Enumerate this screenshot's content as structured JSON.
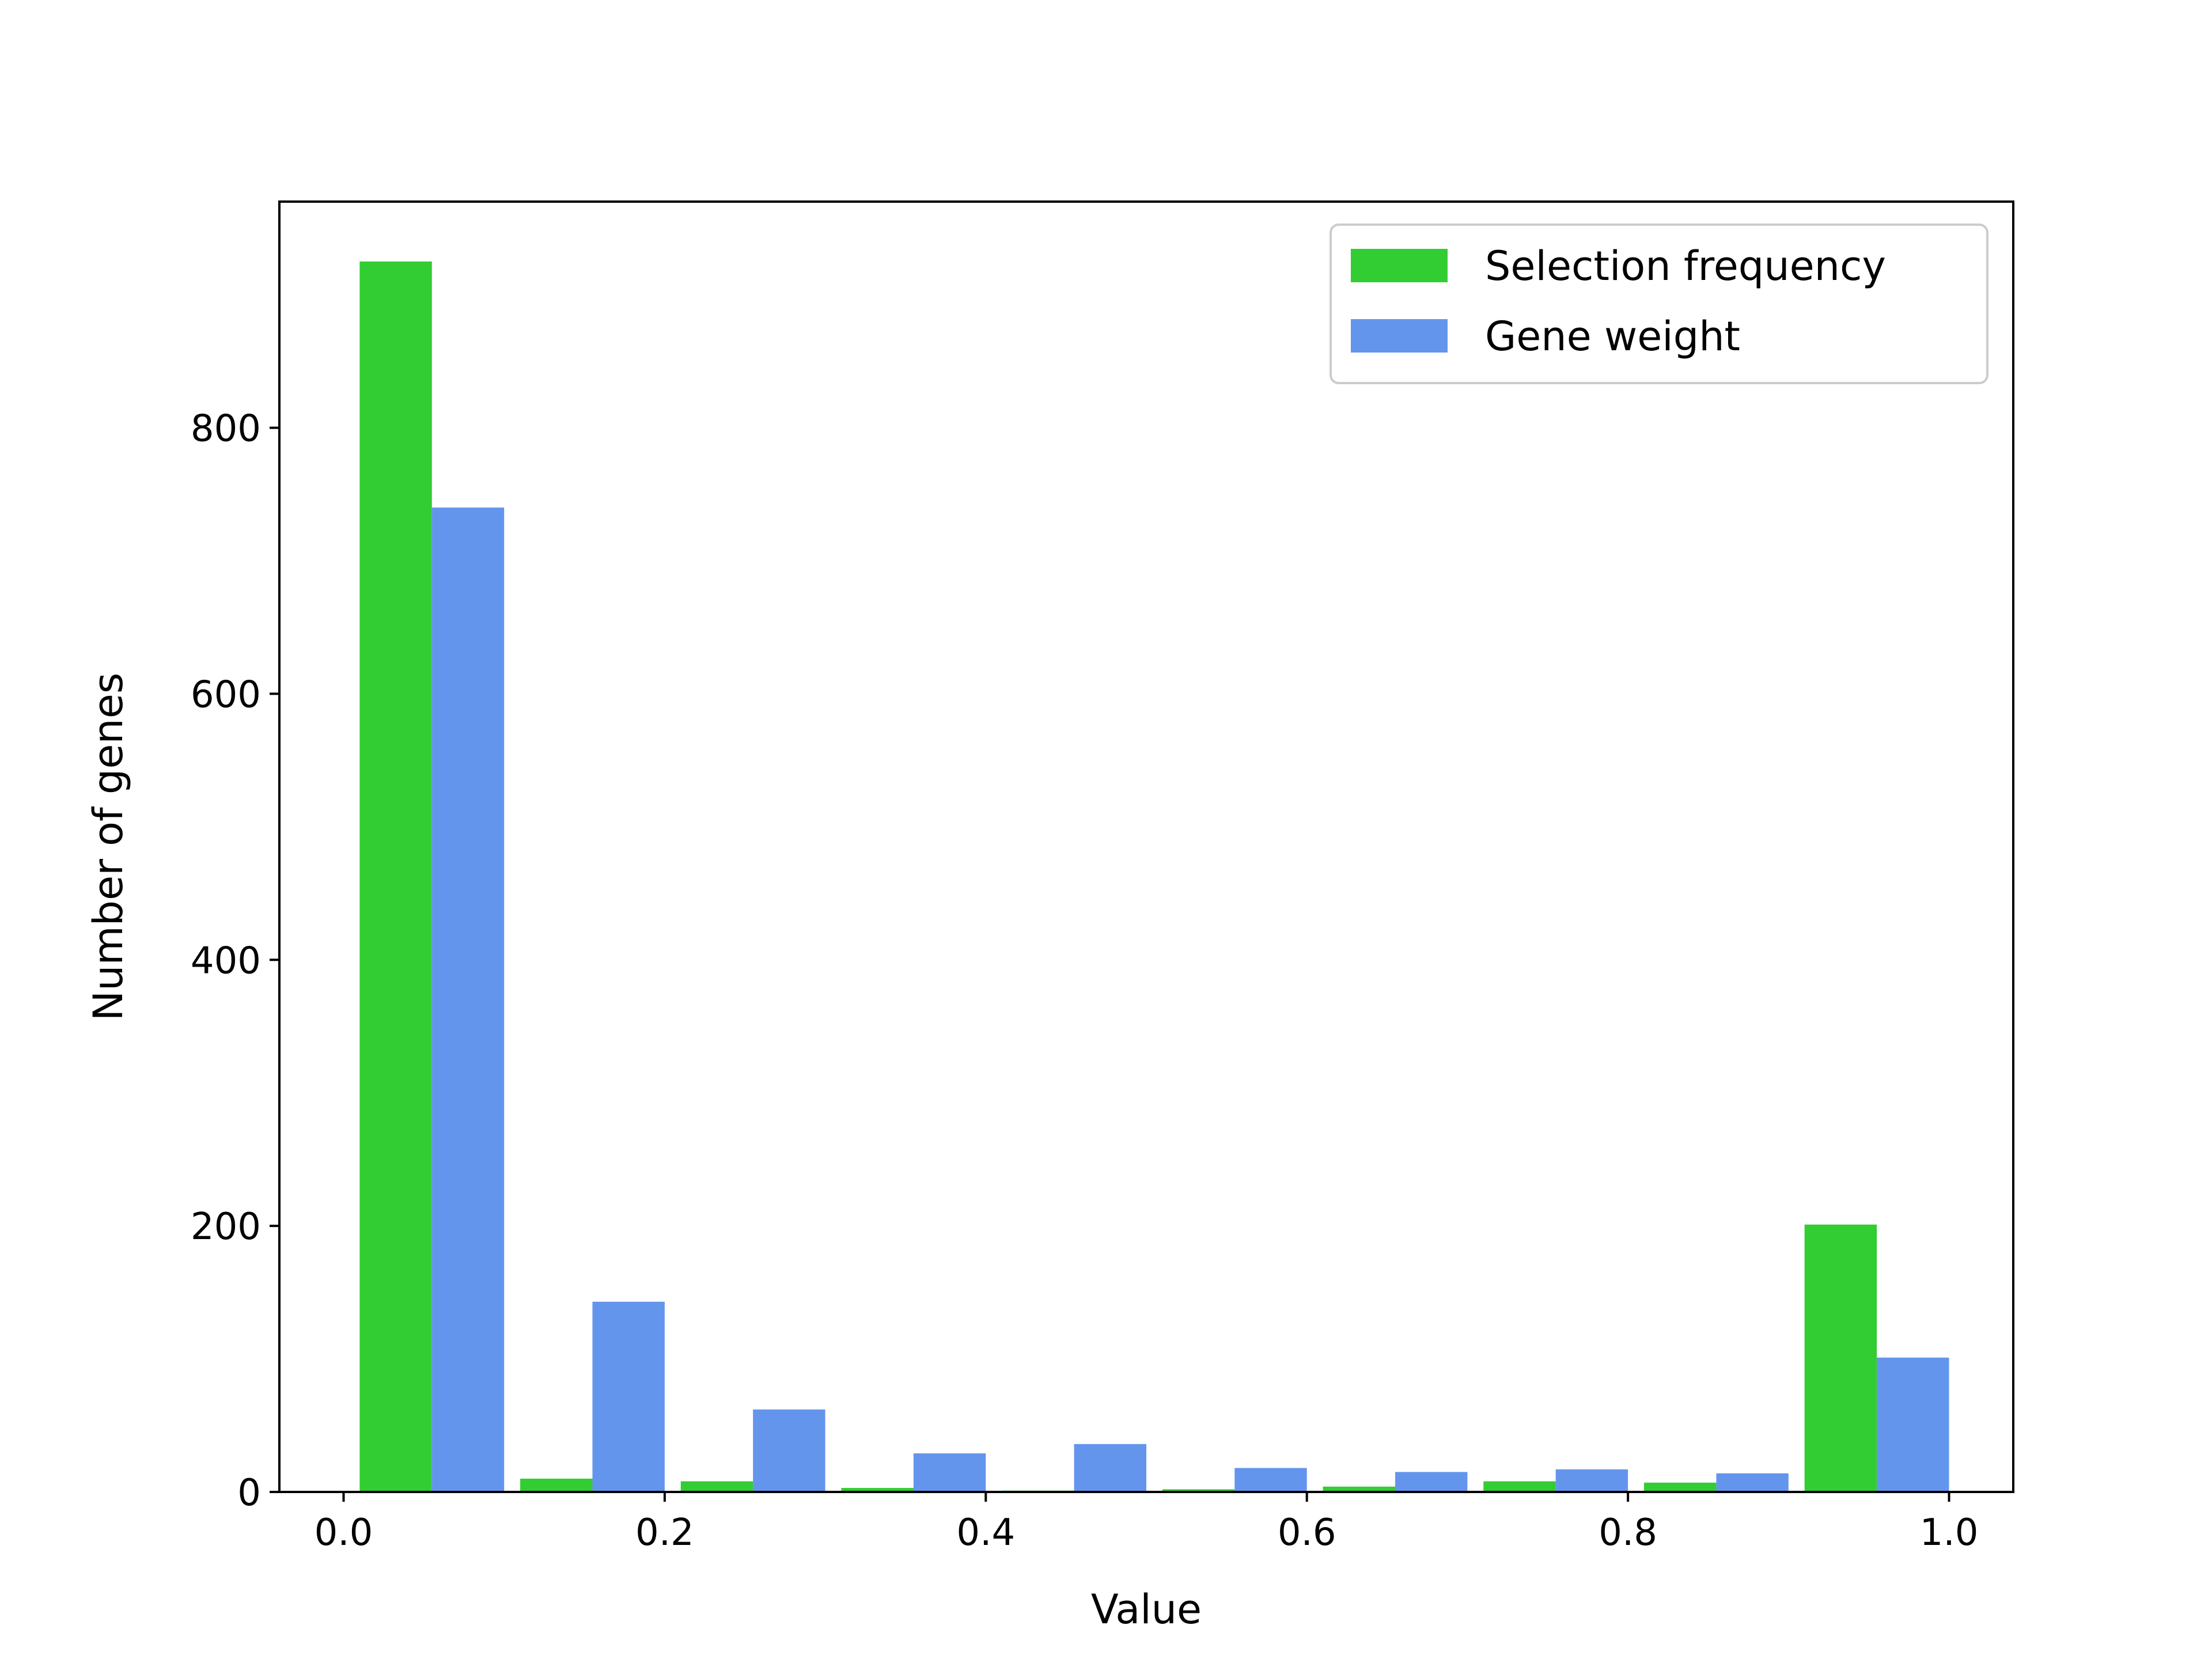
{
  "chart_data": {
    "type": "bar",
    "title": "",
    "xlabel": "Value",
    "ylabel": "Number of genes",
    "xlim": [
      -0.04,
      1.04
    ],
    "ylim": [
      0,
      970
    ],
    "x_ticks": [
      0.0,
      0.2,
      0.4,
      0.6,
      0.8,
      1.0
    ],
    "x_tick_labels": [
      "0.0",
      "0.2",
      "0.4",
      "0.6",
      "0.8",
      "1.0"
    ],
    "y_ticks": [
      0,
      200,
      400,
      600,
      800
    ],
    "y_tick_labels": [
      "0",
      "200",
      "400",
      "600",
      "800"
    ],
    "bin_edges": [
      0.01,
      0.11,
      0.21,
      0.31,
      0.41,
      0.51,
      0.61,
      0.71,
      0.81,
      0.91,
      1.01
    ],
    "series": [
      {
        "name": "Selection frequency",
        "color": "#32cd32",
        "values": [
          925,
          10,
          8,
          3,
          1,
          2,
          4,
          8,
          7,
          201
        ]
      },
      {
        "name": "Gene weight",
        "color": "#6495ed",
        "values": [
          740,
          143,
          62,
          29,
          36,
          18,
          15,
          17,
          14,
          101
        ]
      }
    ],
    "grid": false,
    "legend_position": "top-right"
  }
}
